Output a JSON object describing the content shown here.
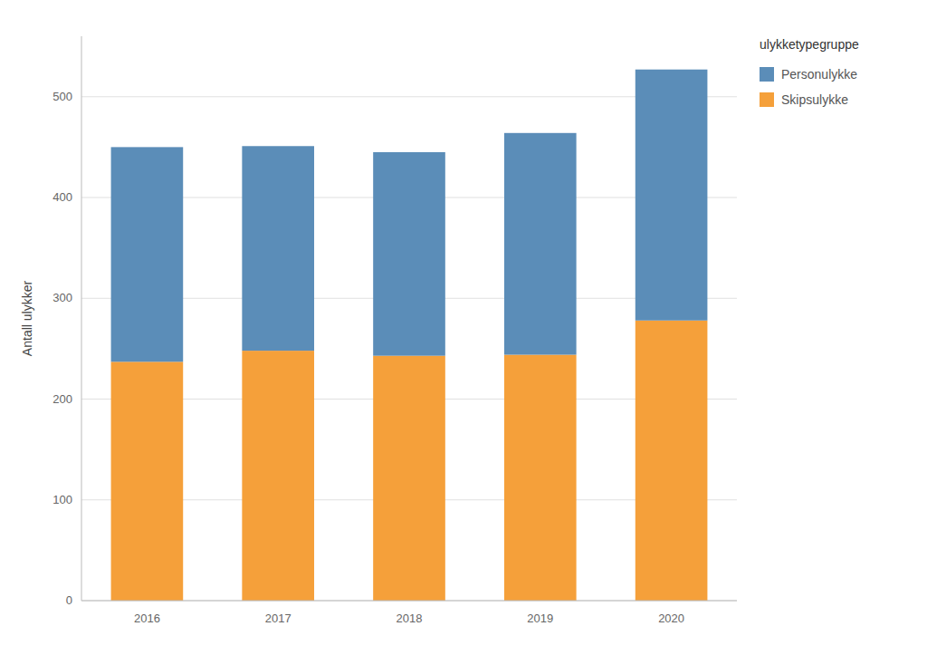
{
  "chart_data": {
    "type": "bar",
    "stacked": true,
    "categories": [
      "2016",
      "2017",
      "2018",
      "2019",
      "2020"
    ],
    "series": [
      {
        "name": "Skipsulykke",
        "color": "#F5A03A",
        "values": [
          237,
          248,
          243,
          244,
          278
        ]
      },
      {
        "name": "Personulykke",
        "color": "#5B8DB8",
        "values": [
          213,
          203,
          202,
          220,
          249
        ]
      }
    ],
    "ylabel": "Antall ulykker",
    "legend_title": "ulykketypegruppe",
    "ylim": [
      0,
      560
    ],
    "yticks": [
      0,
      100,
      200,
      300,
      400,
      500
    ],
    "grid": true,
    "legend": "right"
  }
}
